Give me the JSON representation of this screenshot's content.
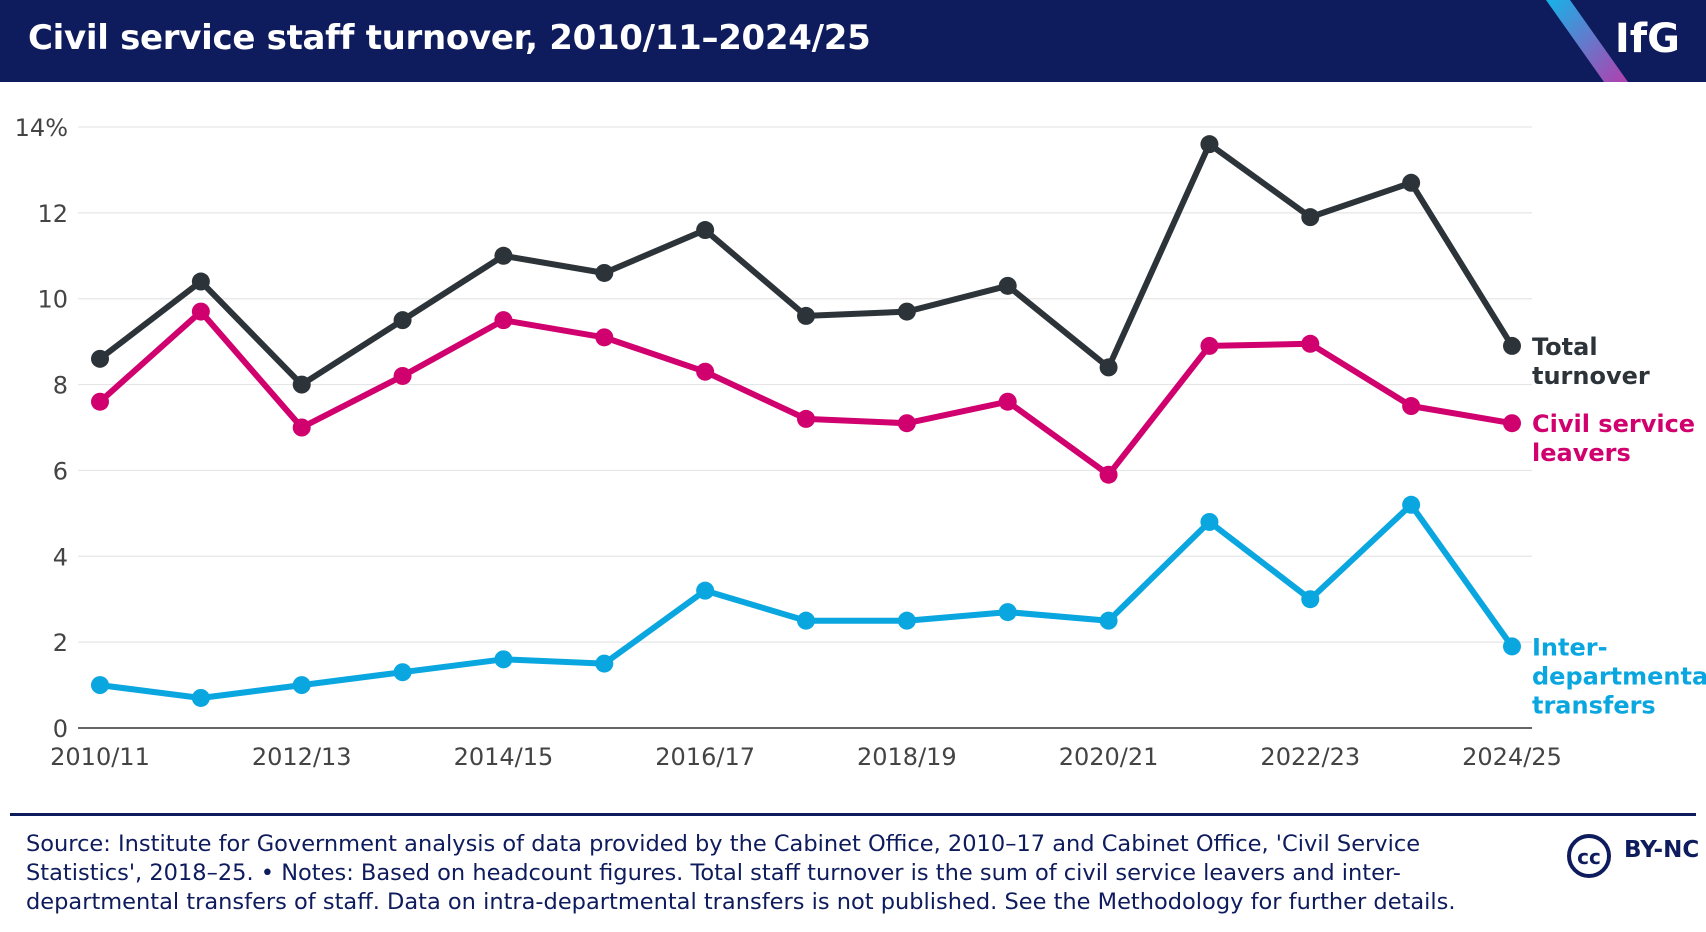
{
  "header": {
    "title": "Civil service staff turnover, 2010/11–2024/25",
    "logo": "IfG"
  },
  "chart_data": {
    "type": "line",
    "title": "Civil service staff turnover, 2010/11–2024/25",
    "xlabel": "",
    "ylabel": "",
    "ylim": [
      0,
      14
    ],
    "y_ticks": [
      "0",
      "2",
      "4",
      "6",
      "8",
      "10",
      "12",
      "14%"
    ],
    "x": [
      "2010/11",
      "2011/12",
      "2012/13",
      "2013/14",
      "2014/15",
      "2015/16",
      "2016/17",
      "2017/18",
      "2018/19",
      "2019/20",
      "2020/21",
      "2021/22",
      "2022/23",
      "2023/24",
      "2024/25"
    ],
    "x_tick_labels": [
      "2010/11",
      "2012/13",
      "2014/15",
      "2016/17",
      "2018/19",
      "2020/21",
      "2022/23",
      "2024/25"
    ],
    "grid": true,
    "legend": "direct labels at right end of lines",
    "series": [
      {
        "name": "Total turnover",
        "label_lines": [
          "Total",
          "turnover"
        ],
        "color": "#2d3439",
        "values": [
          8.6,
          10.4,
          8.0,
          9.5,
          11.0,
          10.6,
          11.6,
          9.6,
          9.7,
          10.3,
          8.4,
          13.6,
          11.9,
          12.7,
          8.9
        ]
      },
      {
        "name": "Civil service leavers",
        "label_lines": [
          "Civil service",
          "leavers"
        ],
        "color": "#d1006f",
        "values": [
          7.6,
          9.7,
          7.0,
          8.2,
          9.5,
          9.1,
          8.3,
          7.2,
          7.1,
          7.6,
          5.9,
          8.9,
          8.95,
          7.5,
          7.1
        ]
      },
      {
        "name": "Inter-departmental transfers",
        "label_lines": [
          "Inter-",
          "departmental",
          "transfers"
        ],
        "color": "#0aa6e0",
        "values": [
          1.0,
          0.7,
          1.0,
          1.3,
          1.6,
          1.5,
          3.2,
          2.5,
          2.5,
          2.7,
          2.5,
          4.8,
          3.0,
          5.2,
          1.9
        ]
      }
    ]
  },
  "footer": {
    "source_lines": [
      "Source: Institute for Government analysis of data provided by the Cabinet Office, 2010–17 and Cabinet Office, 'Civil Service",
      "Statistics', 2018–25. • Notes: Based on headcount figures. Total staff turnover is the sum of civil service leavers and inter-",
      "departmental transfers of staff. Data on intra-departmental transfers is not published. See the Methodology for further details."
    ],
    "license_badge": "cc",
    "license": "BY-NC"
  }
}
